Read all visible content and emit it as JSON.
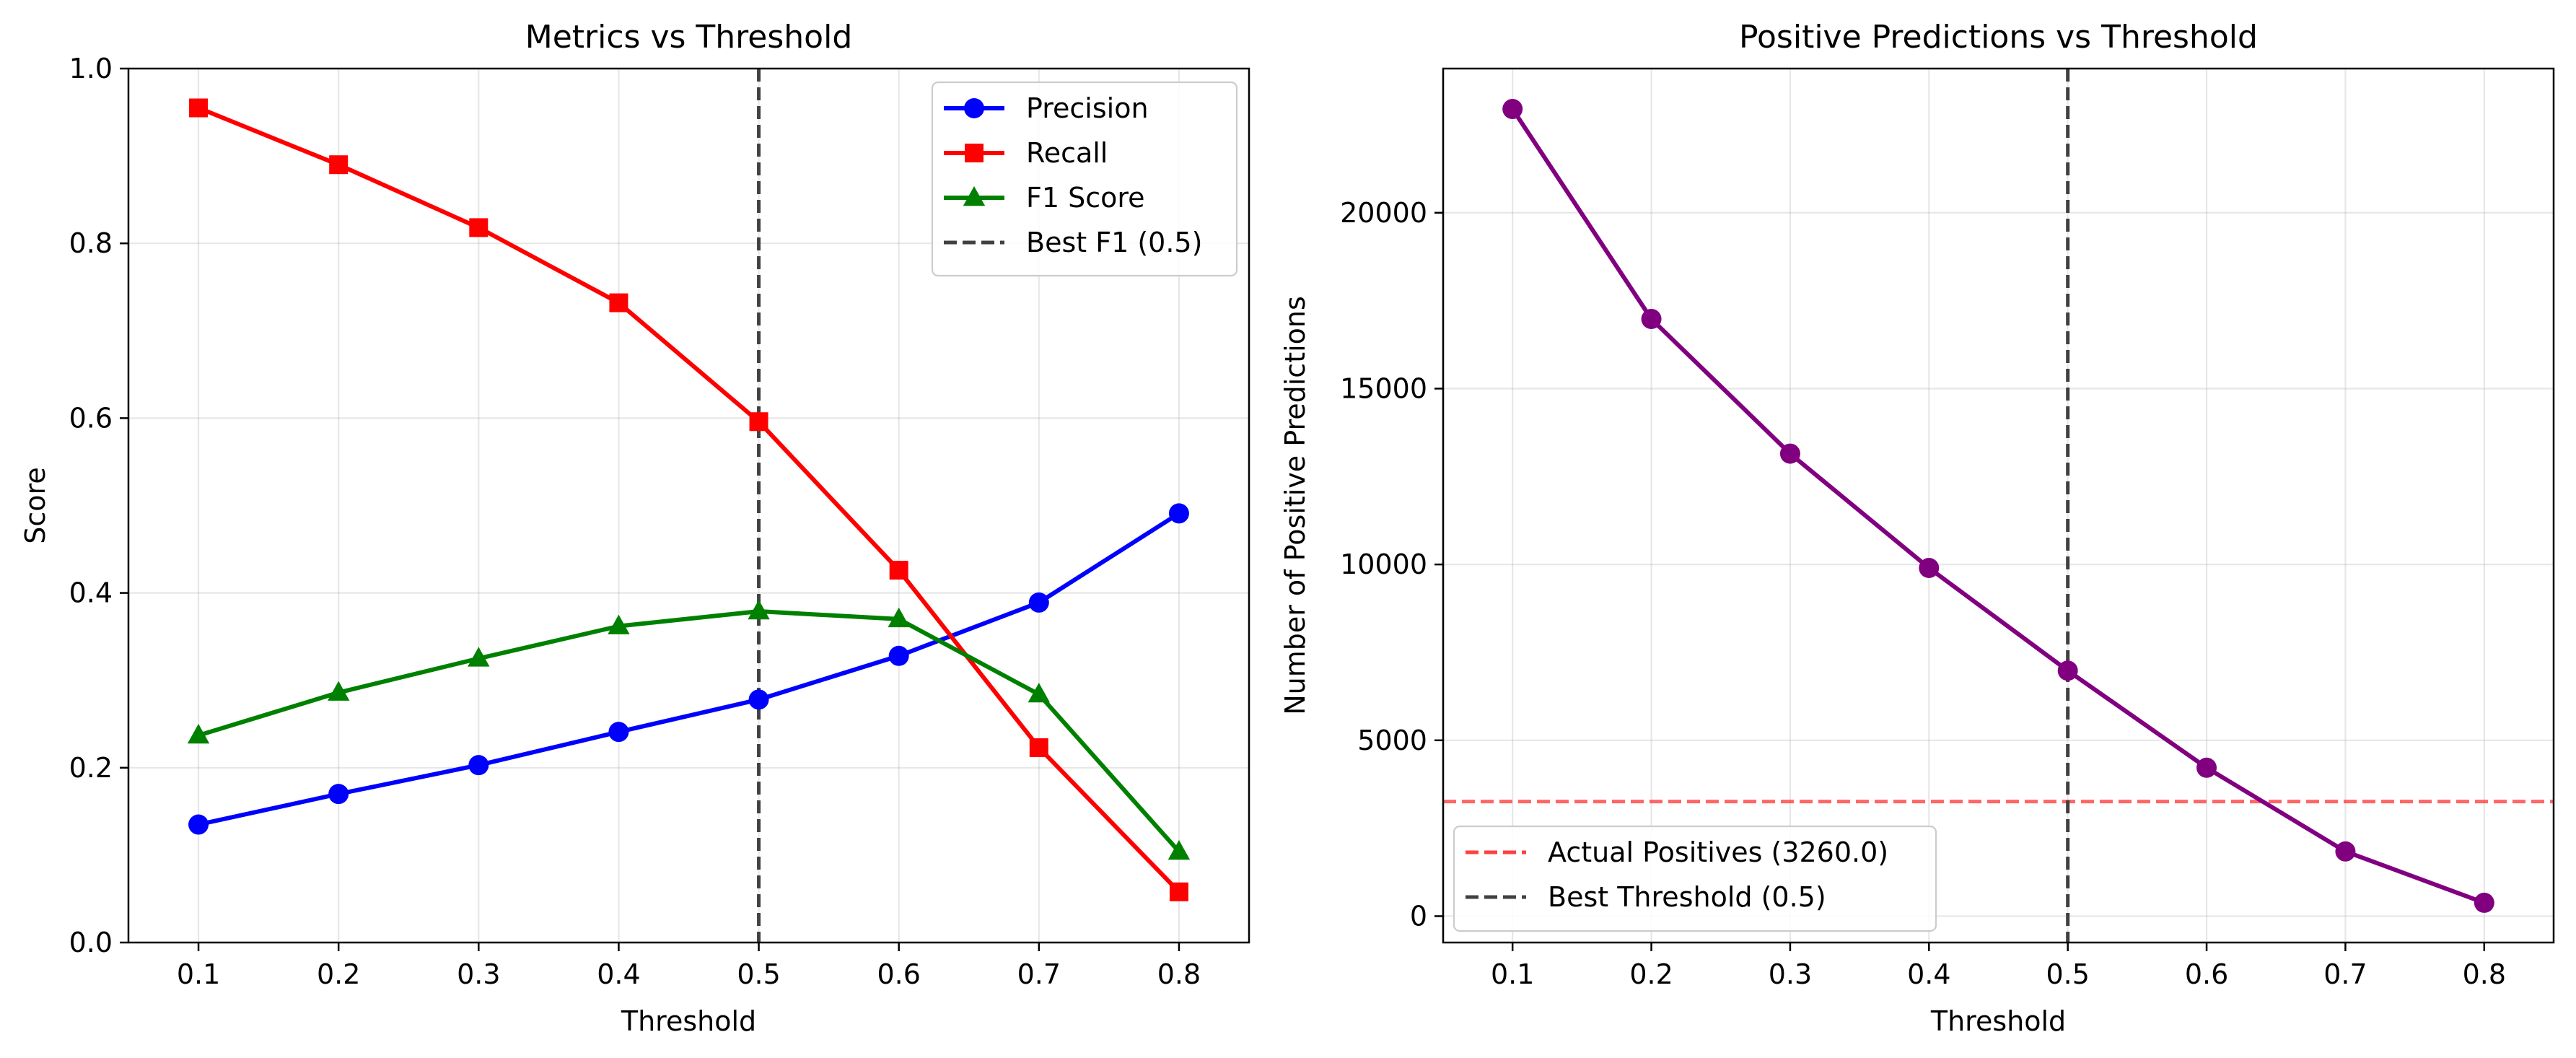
{
  "chart_data": [
    {
      "type": "line",
      "title": "Metrics vs Threshold",
      "xlabel": "Threshold",
      "ylabel": "Score",
      "xlim": [
        0.05,
        0.85
      ],
      "ylim": [
        0.0,
        1.0
      ],
      "x_ticks": [
        "0.1",
        "0.2",
        "0.3",
        "0.4",
        "0.5",
        "0.6",
        "0.7",
        "0.8"
      ],
      "x_tick_values": [
        0.1,
        0.2,
        0.3,
        0.4,
        0.5,
        0.6,
        0.7,
        0.8
      ],
      "y_ticks": [
        "0.0",
        "0.2",
        "0.4",
        "0.6",
        "0.8",
        "1.0"
      ],
      "y_tick_values": [
        0.0,
        0.2,
        0.4,
        0.6,
        0.8,
        1.0
      ],
      "grid": true,
      "legend_position": "top-right",
      "x": [
        0.1,
        0.2,
        0.3,
        0.4,
        0.5,
        0.6,
        0.7,
        0.8
      ],
      "series": [
        {
          "name": "Precision",
          "color": "#0000ff",
          "marker": "circle",
          "values": [
            0.135,
            0.17,
            0.203,
            0.241,
            0.278,
            0.328,
            0.389,
            0.491
          ]
        },
        {
          "name": "Recall",
          "color": "#ff0000",
          "marker": "square",
          "values": [
            0.955,
            0.89,
            0.818,
            0.732,
            0.596,
            0.426,
            0.223,
            0.058
          ]
        },
        {
          "name": "F1 Score",
          "color": "#008000",
          "marker": "triangle",
          "values": [
            0.237,
            0.286,
            0.325,
            0.362,
            0.379,
            0.37,
            0.284,
            0.104
          ]
        }
      ],
      "reference_lines": [
        {
          "name": "Best F1 (0.5)",
          "orientation": "vertical",
          "value": 0.5,
          "color": "#404040",
          "style": "dashed"
        }
      ]
    },
    {
      "type": "line",
      "title": "Positive Predictions vs Threshold",
      "xlabel": "Threshold",
      "ylabel": "Number of Positive Predictions",
      "xlim": [
        0.05,
        0.85
      ],
      "ylim": [
        -750,
        24100
      ],
      "x_ticks": [
        "0.1",
        "0.2",
        "0.3",
        "0.4",
        "0.5",
        "0.6",
        "0.7",
        "0.8"
      ],
      "x_tick_values": [
        0.1,
        0.2,
        0.3,
        0.4,
        0.5,
        0.6,
        0.7,
        0.8
      ],
      "y_ticks": [
        "0",
        "5000",
        "10000",
        "15000",
        "20000"
      ],
      "y_tick_values": [
        0,
        5000,
        10000,
        15000,
        20000
      ],
      "grid": true,
      "legend_position": "bottom-left",
      "x": [
        0.1,
        0.2,
        0.3,
        0.4,
        0.5,
        0.6,
        0.7,
        0.8
      ],
      "series": [
        {
          "color": "#800080",
          "marker": "circle",
          "values": [
            22950,
            16980,
            13150,
            9900,
            6980,
            4220,
            1840,
            380
          ]
        }
      ],
      "reference_lines": [
        {
          "name": "Actual Positives (3260.0)",
          "orientation": "horizontal",
          "value": 3260,
          "color": "#ff4040",
          "style": "dashed"
        },
        {
          "name": "Best Threshold (0.5)",
          "orientation": "vertical",
          "value": 0.5,
          "color": "#404040",
          "style": "dashed"
        }
      ]
    }
  ]
}
